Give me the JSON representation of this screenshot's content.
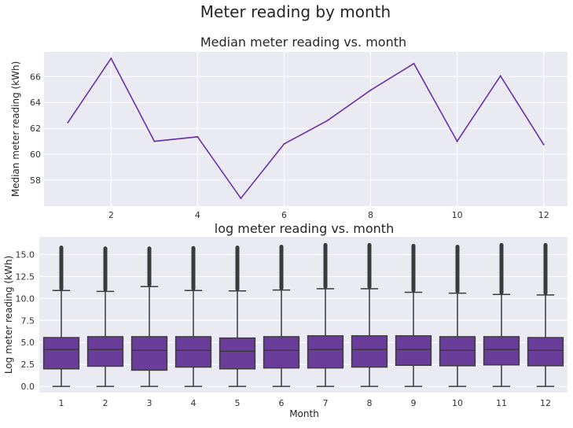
{
  "figure": {
    "suptitle": "Meter reading by month"
  },
  "chart_data": [
    {
      "type": "line",
      "title": "Median meter reading vs. month",
      "xlabel": "",
      "ylabel": "Median meter reading (kWh)",
      "x": [
        1,
        2,
        3,
        4,
        5,
        6,
        7,
        8,
        9,
        10,
        11,
        12
      ],
      "y": [
        62.45,
        67.4,
        61.0,
        61.35,
        56.6,
        60.8,
        62.6,
        64.95,
        67.0,
        61.0,
        66.05,
        60.75
      ],
      "xticks": [
        2,
        4,
        6,
        8,
        10,
        12
      ],
      "yticks": [
        58,
        60,
        62,
        64,
        66
      ],
      "xlim": [
        0.45,
        12.55
      ],
      "ylim": [
        56.0,
        67.9
      ],
      "color": "#6a30a4",
      "grid": true,
      "background": "#eaeaf2"
    },
    {
      "type": "box",
      "title": "log meter reading vs. month",
      "xlabel": "Month",
      "ylabel": "Log meter reading (kWh)",
      "categories": [
        "1",
        "2",
        "3",
        "4",
        "5",
        "6",
        "7",
        "8",
        "9",
        "10",
        "11",
        "12"
      ],
      "boxes": [
        {
          "q1": 2.0,
          "median": 4.2,
          "q3": 5.55,
          "whisker_low": 0.0,
          "whisker_high": 10.9,
          "flier_max": 16.0
        },
        {
          "q1": 2.3,
          "median": 4.2,
          "q3": 5.65,
          "whisker_low": 0.0,
          "whisker_high": 10.8,
          "flier_max": 15.9
        },
        {
          "q1": 1.85,
          "median": 4.1,
          "q3": 5.65,
          "whisker_low": 0.0,
          "whisker_high": 11.35,
          "flier_max": 15.9
        },
        {
          "q1": 2.2,
          "median": 4.1,
          "q3": 5.65,
          "whisker_low": 0.0,
          "whisker_high": 10.9,
          "flier_max": 15.95
        },
        {
          "q1": 2.0,
          "median": 4.0,
          "q3": 5.5,
          "whisker_low": 0.0,
          "whisker_high": 10.85,
          "flier_max": 16.0
        },
        {
          "q1": 2.1,
          "median": 4.1,
          "q3": 5.65,
          "whisker_low": 0.0,
          "whisker_high": 10.95,
          "flier_max": 16.1
        },
        {
          "q1": 2.1,
          "median": 4.2,
          "q3": 5.75,
          "whisker_low": 0.0,
          "whisker_high": 11.1,
          "flier_max": 16.3
        },
        {
          "q1": 2.2,
          "median": 4.2,
          "q3": 5.75,
          "whisker_low": 0.0,
          "whisker_high": 11.1,
          "flier_max": 16.3
        },
        {
          "q1": 2.4,
          "median": 4.2,
          "q3": 5.75,
          "whisker_low": 0.0,
          "whisker_high": 10.7,
          "flier_max": 16.2
        },
        {
          "q1": 2.35,
          "median": 4.1,
          "q3": 5.65,
          "whisker_low": 0.0,
          "whisker_high": 10.6,
          "flier_max": 16.1
        },
        {
          "q1": 2.45,
          "median": 4.2,
          "q3": 5.65,
          "whisker_low": 0.0,
          "whisker_high": 10.45,
          "flier_max": 16.3
        },
        {
          "q1": 2.35,
          "median": 4.1,
          "q3": 5.55,
          "whisker_low": 0.0,
          "whisker_high": 10.4,
          "flier_max": 16.3
        }
      ],
      "yticks": [
        0.0,
        2.5,
        5.0,
        7.5,
        10.0,
        12.5,
        15.0
      ],
      "ytick_labels": [
        "0.0",
        "2.5",
        "5.0",
        "7.5",
        "10.0",
        "12.5",
        "15.0"
      ],
      "ylim": [
        -0.7,
        17.0
      ],
      "box_color": "#6a3d9a",
      "line_color": "#3b3b3b",
      "grid": true,
      "background": "#eaeaf2"
    }
  ]
}
